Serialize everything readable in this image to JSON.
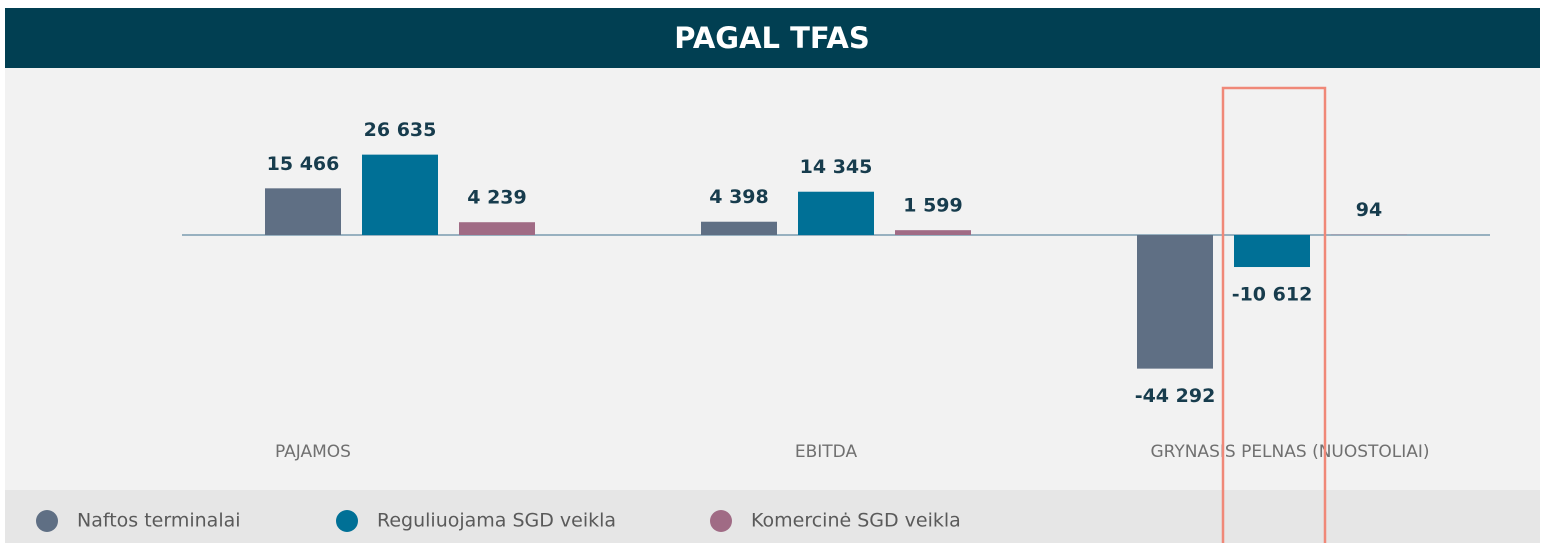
{
  "chart_data": {
    "type": "bar",
    "title": "PAGAL TFAS",
    "categories": [
      "PAJAMOS",
      "EBITDA",
      "GRYNASIS PELNAS (NUOSTOLIAI)"
    ],
    "series": [
      {
        "name": "Naftos terminalai",
        "color": "#5f6f84",
        "values": [
          15466,
          4398,
          -44292
        ],
        "value_labels": [
          "15 466",
          "4 398",
          "-44 292"
        ]
      },
      {
        "name": "Reguliuojama SGD veikla",
        "color": "#007096",
        "values": [
          26635,
          14345,
          -10612
        ],
        "value_labels": [
          "26 635",
          "14 345",
          "-10 612"
        ]
      },
      {
        "name": "Komercinė SGD veikla",
        "color": "#a06b85",
        "values": [
          4239,
          1599,
          94
        ],
        "value_labels": [
          "4 239",
          "1 599",
          "94"
        ]
      }
    ],
    "legend": "bottom-left"
  }
}
